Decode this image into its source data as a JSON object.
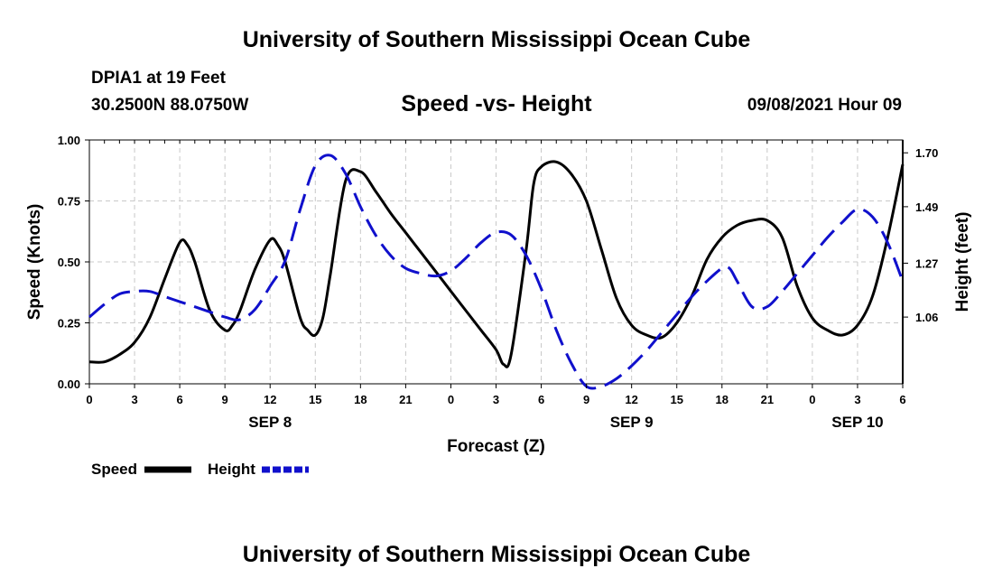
{
  "header": {
    "title": "University of Southern Mississippi Ocean Cube",
    "station": "DPIA1 at 19 Feet",
    "coords": "30.2500N  88.0750W",
    "datetime": "09/08/2021 Hour 09"
  },
  "footer": {
    "title": "University of Southern Mississippi Ocean Cube"
  },
  "chart_data": {
    "type": "line",
    "title": "Speed -vs- Height",
    "xlabel": "Forecast (Z)",
    "ylabel": "Speed (Knots)",
    "y2label": "Height (feet)",
    "x_range_hours": [
      0,
      54
    ],
    "x_ticks": [
      {
        "h": 0,
        "label": "0"
      },
      {
        "h": 3,
        "label": "3"
      },
      {
        "h": 6,
        "label": "6"
      },
      {
        "h": 9,
        "label": "9"
      },
      {
        "h": 12,
        "label": "12"
      },
      {
        "h": 15,
        "label": "15"
      },
      {
        "h": 18,
        "label": "18"
      },
      {
        "h": 21,
        "label": "21"
      },
      {
        "h": 24,
        "label": "0"
      },
      {
        "h": 27,
        "label": "3"
      },
      {
        "h": 30,
        "label": "6"
      },
      {
        "h": 33,
        "label": "9"
      },
      {
        "h": 36,
        "label": "12"
      },
      {
        "h": 39,
        "label": "15"
      },
      {
        "h": 42,
        "label": "18"
      },
      {
        "h": 45,
        "label": "21"
      },
      {
        "h": 48,
        "label": "0"
      },
      {
        "h": 51,
        "label": "3"
      },
      {
        "h": 54,
        "label": "6"
      }
    ],
    "date_labels": [
      {
        "h": 12,
        "label": "SEP 8"
      },
      {
        "h": 36,
        "label": "SEP 9"
      },
      {
        "h": 51,
        "label": "SEP 10"
      }
    ],
    "ylim": [
      0,
      1
    ],
    "y_ticks": [
      "0.00",
      "0.25",
      "0.50",
      "0.75",
      "1.00"
    ],
    "y2lim": [
      0.8,
      1.75
    ],
    "y2_ticks": [
      "1.06",
      "1.27",
      "1.49",
      "1.70"
    ],
    "grid": true,
    "series": [
      {
        "name": "Speed",
        "axis": "left",
        "color": "#000000",
        "dash": "solid",
        "x": [
          0,
          1,
          2,
          3,
          4,
          5,
          6,
          6.5,
          7,
          8,
          9,
          9.5,
          10,
          11,
          12,
          12.5,
          13,
          14,
          14.5,
          15,
          15.5,
          16,
          17,
          18,
          19,
          20,
          21,
          22,
          23,
          24,
          25,
          26,
          27,
          27.5,
          28,
          29,
          29.5,
          30,
          31,
          32,
          33,
          34,
          35,
          36,
          37,
          38,
          39,
          40,
          41,
          42,
          43,
          44,
          45,
          46,
          47,
          48,
          49,
          50,
          51,
          52,
          53,
          54
        ],
        "values": [
          0.09,
          0.09,
          0.12,
          0.17,
          0.27,
          0.43,
          0.58,
          0.57,
          0.5,
          0.3,
          0.22,
          0.24,
          0.3,
          0.47,
          0.59,
          0.57,
          0.5,
          0.27,
          0.22,
          0.2,
          0.27,
          0.45,
          0.83,
          0.87,
          0.79,
          0.7,
          0.62,
          0.54,
          0.46,
          0.38,
          0.3,
          0.22,
          0.14,
          0.08,
          0.12,
          0.55,
          0.82,
          0.89,
          0.91,
          0.86,
          0.75,
          0.55,
          0.35,
          0.24,
          0.2,
          0.19,
          0.25,
          0.36,
          0.51,
          0.6,
          0.65,
          0.67,
          0.67,
          0.6,
          0.4,
          0.27,
          0.22,
          0.2,
          0.24,
          0.36,
          0.6,
          0.9
        ]
      },
      {
        "name": "Height",
        "axis": "right",
        "color": "#1010cc",
        "dash": "dashed",
        "x": [
          0,
          1,
          2,
          3,
          4,
          5,
          6,
          7,
          8,
          9,
          10,
          11,
          12,
          13,
          14,
          15,
          16,
          17,
          18,
          19,
          20,
          21,
          22,
          23,
          24,
          25,
          26,
          27,
          28,
          29,
          30,
          31,
          32,
          33,
          34,
          35,
          36,
          37,
          38,
          39,
          40,
          41,
          42,
          42.5,
          43,
          44,
          45,
          46,
          47,
          48,
          49,
          50,
          51,
          52,
          53,
          54
        ],
        "values": [
          1.06,
          1.11,
          1.15,
          1.16,
          1.16,
          1.14,
          1.12,
          1.1,
          1.08,
          1.06,
          1.05,
          1.09,
          1.18,
          1.28,
          1.48,
          1.65,
          1.69,
          1.62,
          1.49,
          1.38,
          1.3,
          1.25,
          1.23,
          1.22,
          1.24,
          1.29,
          1.35,
          1.39,
          1.38,
          1.3,
          1.17,
          1.01,
          0.88,
          0.79,
          0.79,
          0.82,
          0.87,
          0.93,
          1.0,
          1.07,
          1.14,
          1.2,
          1.25,
          1.25,
          1.2,
          1.1,
          1.1,
          1.16,
          1.23,
          1.3,
          1.37,
          1.43,
          1.48,
          1.45,
          1.35,
          1.2
        ]
      }
    ],
    "legend": [
      {
        "label": "Speed",
        "color": "#000000",
        "dash": "solid"
      },
      {
        "label": "Height",
        "color": "#1010cc",
        "dash": "dashed"
      }
    ],
    "legend_position": "bottom-left"
  }
}
